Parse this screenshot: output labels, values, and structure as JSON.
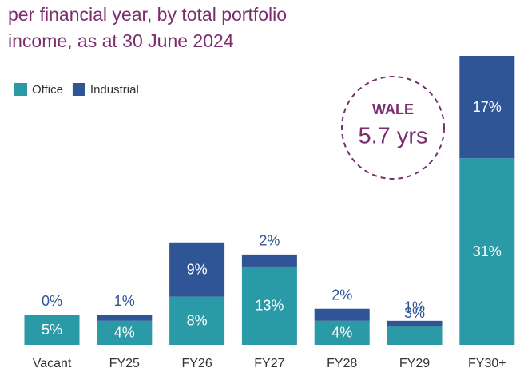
{
  "chart_data": {
    "type": "stacked_bar",
    "subtitle": [
      "per financial year, by total portfolio",
      "income, as at 30 June 2024"
    ],
    "categories": [
      "Vacant",
      "FY25",
      "FY26",
      "FY27",
      "FY28",
      "FY29",
      "FY30+"
    ],
    "series": [
      {
        "name": "Office",
        "color": "#2b9aa7",
        "values": [
          5,
          4,
          8,
          13,
          4,
          3,
          31
        ],
        "value_labels": [
          "5%",
          "4%",
          "8%",
          "13%",
          "4%",
          "3%",
          "31%"
        ]
      },
      {
        "name": "Industrial",
        "color": "#2f5597",
        "values": [
          0,
          1,
          9,
          2,
          2,
          1,
          17
        ],
        "value_labels": [
          "0%",
          "1%",
          "9%",
          "2%",
          "2%",
          "1%",
          "17%"
        ]
      }
    ],
    "ylim": [
      0,
      48
    ],
    "annotation": {
      "label": "WALE",
      "value": "5.7 yrs"
    }
  }
}
